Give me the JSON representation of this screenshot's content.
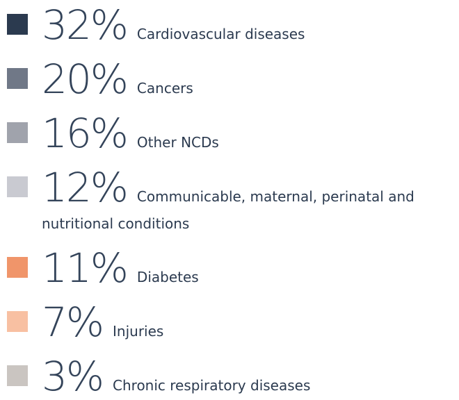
{
  "items": [
    {
      "color": "#2b3a4f",
      "percent": "32%",
      "label": "Cardiovascular diseases"
    },
    {
      "color": "#707887",
      "percent": "20%",
      "label": "Cancers"
    },
    {
      "color": "#a0a3ac",
      "percent": "16%",
      "label": "Other NCDs"
    },
    {
      "color": "#c9cad1",
      "percent": "12%",
      "label": "Communicable, maternal, perinatal and nutritional conditions"
    },
    {
      "color": "#f0956a",
      "percent": "11%",
      "label": "Diabetes"
    },
    {
      "color": "#f8c0a2",
      "percent": "7%",
      "label": "Injuries"
    },
    {
      "color": "#cac5c1",
      "percent": "3%",
      "label": "Chronic respiratory diseases"
    }
  ]
}
